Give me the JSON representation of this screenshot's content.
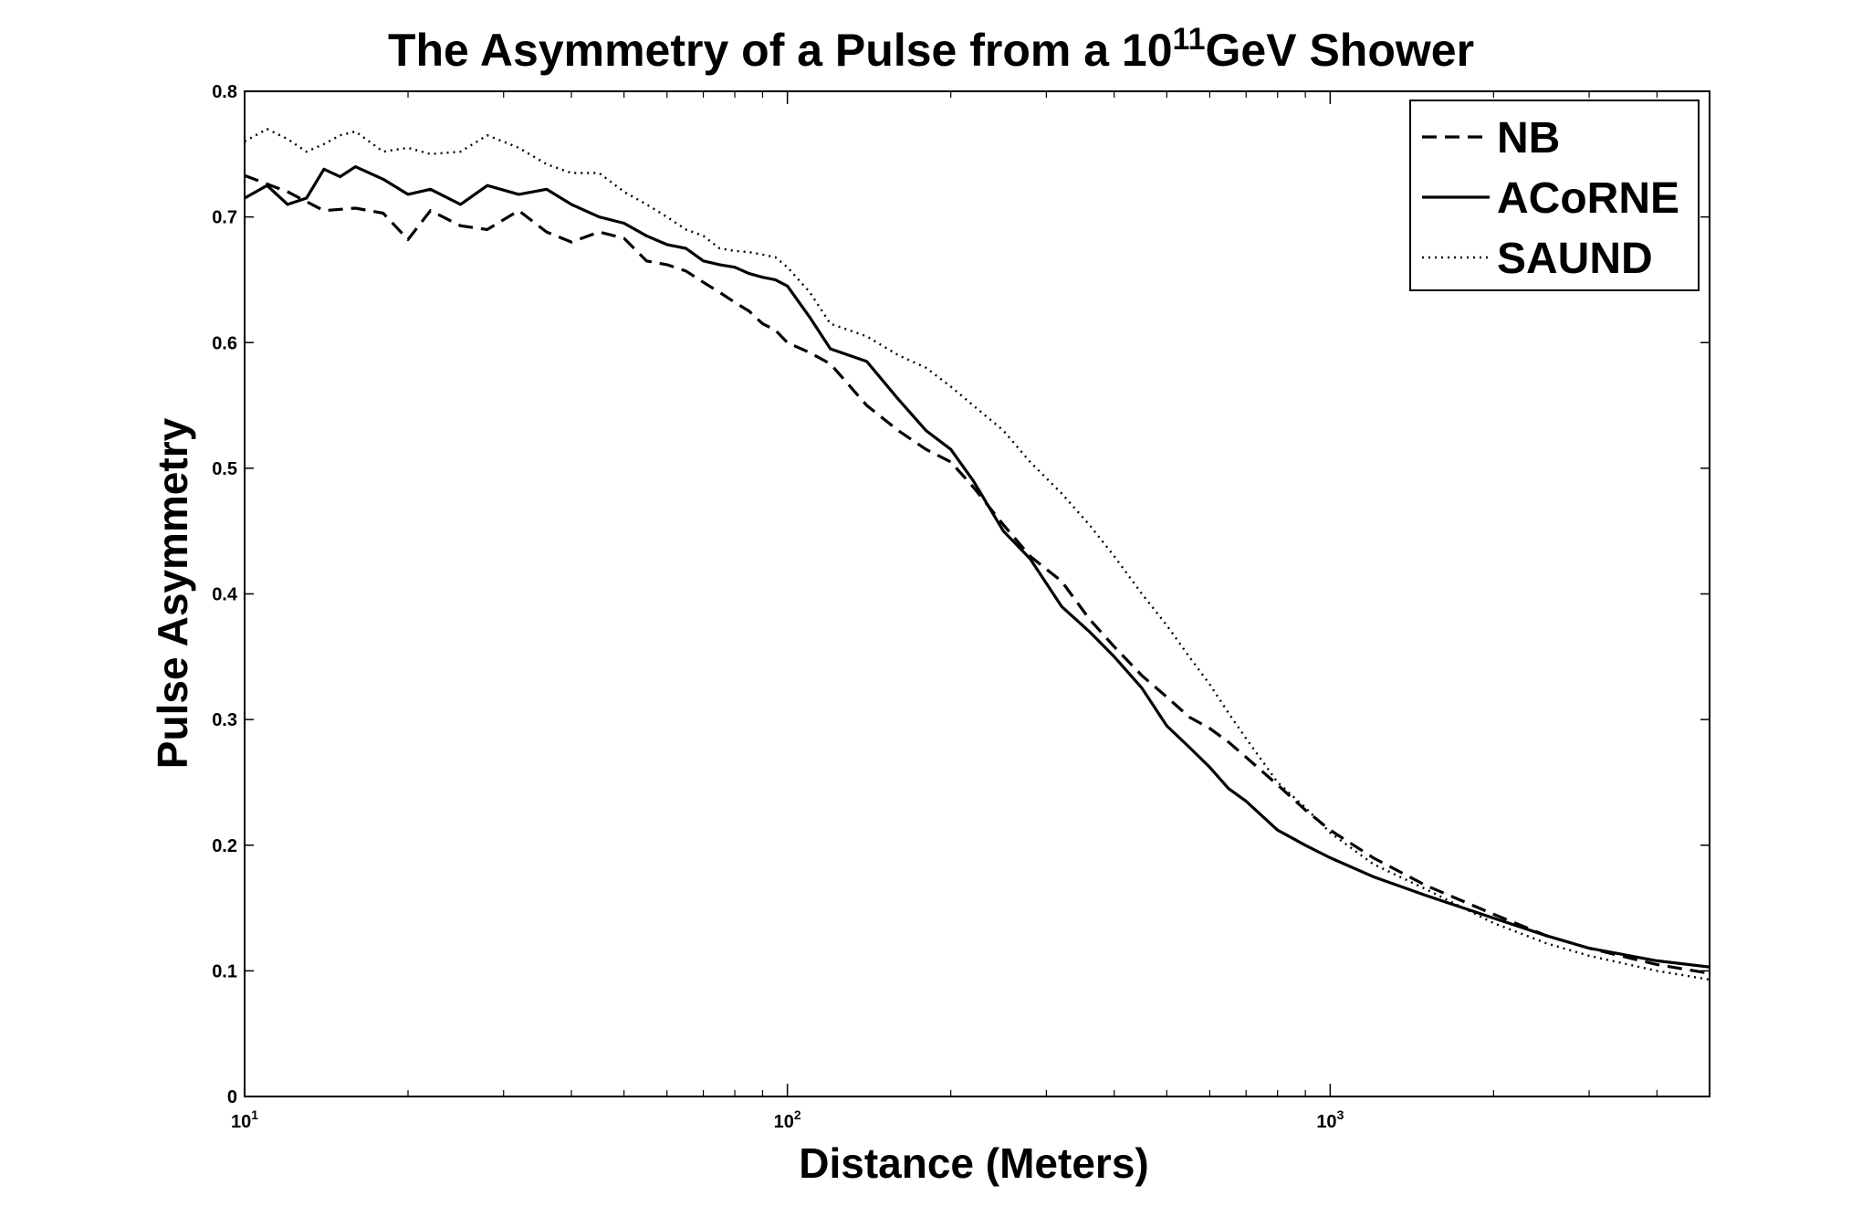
{
  "chart_data": {
    "type": "line",
    "title": "The Asymmetry of a Pulse from a 10",
    "title_sup": "11",
    "title_tail": "GeV Shower",
    "xlabel": "Distance (Meters)",
    "ylabel": "Pulse Asymmetry",
    "x_scale": "log",
    "xlim": [
      10,
      5000
    ],
    "ylim": [
      0,
      0.8
    ],
    "x_ticks": [
      {
        "base": "10",
        "exp": "1",
        "value": 10
      },
      {
        "base": "10",
        "exp": "2",
        "value": 100
      },
      {
        "base": "10",
        "exp": "3",
        "value": 1000
      }
    ],
    "y_ticks": [
      "0",
      "0.1",
      "0.2",
      "0.3",
      "0.4",
      "0.5",
      "0.6",
      "0.7",
      "0.8"
    ],
    "grid": false,
    "legend_position": "top-right",
    "series": [
      {
        "name": "NB",
        "style": "dashed",
        "x": [
          10,
          12,
          14,
          16,
          18,
          20,
          22,
          25,
          28,
          32,
          36,
          40,
          45,
          50,
          55,
          60,
          65,
          70,
          75,
          80,
          85,
          90,
          95,
          100,
          110,
          120,
          140,
          160,
          180,
          200,
          220,
          250,
          280,
          320,
          360,
          400,
          450,
          500,
          550,
          600,
          650,
          700,
          800,
          900,
          1000,
          1200,
          1500,
          2000,
          2500,
          3000,
          4000,
          5000
        ],
        "y": [
          0.733,
          0.72,
          0.705,
          0.707,
          0.703,
          0.682,
          0.705,
          0.693,
          0.69,
          0.705,
          0.688,
          0.68,
          0.688,
          0.683,
          0.665,
          0.662,
          0.657,
          0.648,
          0.64,
          0.632,
          0.625,
          0.615,
          0.61,
          0.6,
          0.592,
          0.583,
          0.55,
          0.53,
          0.515,
          0.505,
          0.485,
          0.455,
          0.43,
          0.41,
          0.38,
          0.358,
          0.335,
          0.318,
          0.302,
          0.293,
          0.282,
          0.27,
          0.248,
          0.228,
          0.212,
          0.19,
          0.168,
          0.145,
          0.128,
          0.118,
          0.105,
          0.098
        ]
      },
      {
        "name": "ACoRNE",
        "style": "solid",
        "x": [
          10,
          11,
          12,
          13,
          14,
          15,
          16,
          18,
          20,
          22,
          25,
          28,
          32,
          36,
          40,
          45,
          50,
          55,
          60,
          65,
          70,
          75,
          80,
          85,
          90,
          95,
          100,
          110,
          120,
          140,
          160,
          180,
          200,
          220,
          250,
          280,
          320,
          360,
          400,
          450,
          500,
          550,
          600,
          650,
          700,
          800,
          900,
          1000,
          1200,
          1500,
          2000,
          2500,
          3000,
          4000,
          5000
        ],
        "y": [
          0.715,
          0.725,
          0.71,
          0.715,
          0.738,
          0.732,
          0.74,
          0.73,
          0.718,
          0.722,
          0.71,
          0.725,
          0.718,
          0.722,
          0.71,
          0.7,
          0.695,
          0.685,
          0.678,
          0.675,
          0.665,
          0.662,
          0.66,
          0.655,
          0.652,
          0.65,
          0.645,
          0.62,
          0.595,
          0.585,
          0.555,
          0.53,
          0.515,
          0.49,
          0.45,
          0.428,
          0.39,
          0.37,
          0.35,
          0.325,
          0.295,
          0.278,
          0.262,
          0.245,
          0.235,
          0.212,
          0.2,
          0.19,
          0.175,
          0.16,
          0.142,
          0.128,
          0.118,
          0.108,
          0.103
        ]
      },
      {
        "name": "SAUND",
        "style": "dotted",
        "x": [
          10,
          11,
          12,
          13,
          14,
          15,
          16,
          18,
          20,
          22,
          25,
          28,
          32,
          36,
          40,
          45,
          50,
          55,
          60,
          65,
          70,
          75,
          80,
          85,
          90,
          95,
          100,
          110,
          120,
          140,
          160,
          180,
          200,
          220,
          250,
          280,
          320,
          360,
          400,
          450,
          500,
          550,
          600,
          650,
          700,
          800,
          900,
          1000,
          1200,
          1500,
          2000,
          2500,
          3000,
          4000,
          5000
        ],
        "y": [
          0.76,
          0.77,
          0.762,
          0.752,
          0.758,
          0.765,
          0.768,
          0.752,
          0.755,
          0.75,
          0.752,
          0.765,
          0.755,
          0.742,
          0.735,
          0.735,
          0.72,
          0.71,
          0.7,
          0.69,
          0.685,
          0.675,
          0.673,
          0.672,
          0.67,
          0.668,
          0.66,
          0.64,
          0.615,
          0.605,
          0.59,
          0.58,
          0.565,
          0.55,
          0.53,
          0.505,
          0.48,
          0.455,
          0.43,
          0.4,
          0.375,
          0.35,
          0.328,
          0.305,
          0.285,
          0.25,
          0.23,
          0.21,
          0.185,
          0.165,
          0.138,
          0.122,
          0.112,
          0.1,
          0.093
        ]
      }
    ]
  }
}
